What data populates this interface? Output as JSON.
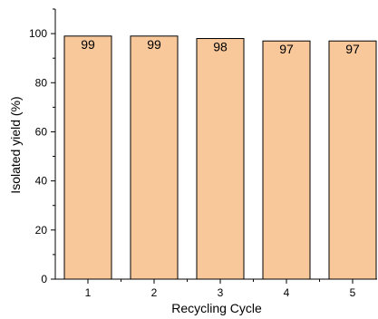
{
  "chart_data": {
    "type": "bar",
    "categories": [
      "1",
      "2",
      "3",
      "4",
      "5"
    ],
    "values": [
      99,
      99,
      98,
      97,
      97
    ],
    "data_labels": [
      "99",
      "99",
      "98",
      "97",
      "97"
    ],
    "title": "",
    "xlabel": "Recycling Cycle",
    "ylabel": "Isolated yield (%)",
    "ylim": [
      0,
      110
    ],
    "yticks": [
      0,
      20,
      40,
      60,
      80,
      100
    ],
    "y_tick_labels": [
      "0",
      "20",
      "40",
      "60",
      "80",
      "100"
    ],
    "grid": false,
    "legend": "none",
    "colors": {
      "bar_fill": "#F8C89A",
      "bar_stroke": "#000000",
      "axis": "#000000"
    }
  }
}
